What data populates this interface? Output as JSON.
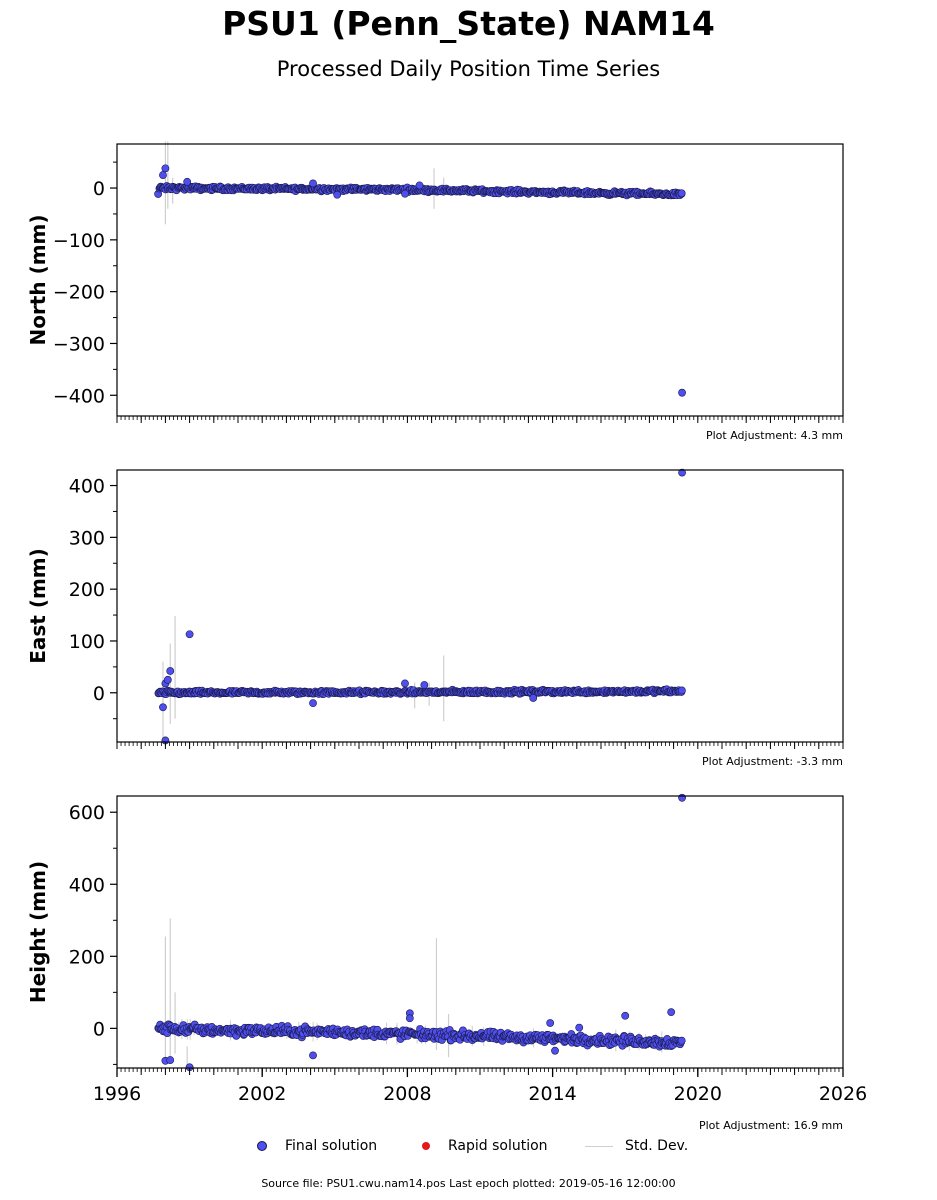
{
  "title": "PSU1 (Penn_State) NAM14",
  "subtitle": "Processed Daily Position Time Series",
  "colors": {
    "final": "#4f4fef",
    "final_edge": "#1a1a4a",
    "rapid": "#e31a1c",
    "stddev": "#cfcfcf"
  },
  "legend": {
    "final": "Final solution",
    "rapid": "Rapid solution",
    "stddev": "Std. Dev."
  },
  "footer": "Source file: PSU1.cwu.nam14.pos  Last epoch plotted: 2019-05-16 12:00:00",
  "chart_data": [
    {
      "type": "scatter",
      "ylabel": "North (mm)",
      "adjustment": "Plot Adjustment: 4.3 mm",
      "xlim": [
        1996,
        2026
      ],
      "ylim": [
        -440,
        85
      ],
      "yticks": [
        0,
        -100,
        -200,
        -300,
        -400
      ],
      "ytick_labels": [
        "0",
        "−100",
        "−200",
        "−300",
        "−400"
      ],
      "minor_step": 50,
      "show_xtick_labels": false,
      "series": [
        {
          "trend": [
            [
              1997.7,
              0
            ],
            [
              2008,
              -3
            ],
            [
              2013.5,
              -8
            ],
            [
              2019.35,
              -12
            ]
          ],
          "noise": 2.5,
          "outliers": [
            [
              1997.9,
              25
            ],
            [
              1998.0,
              38
            ],
            [
              1998.9,
              12
            ],
            [
              2004.1,
              9
            ],
            [
              2005.1,
              -13
            ],
            [
              2007.9,
              -11
            ],
            [
              2008.5,
              5
            ],
            [
              2019.35,
              -395
            ]
          ],
          "errorbars": [
            [
              1998.0,
              -70,
              90
            ],
            [
              1998.1,
              -40,
              90
            ],
            [
              1998.3,
              -30,
              20
            ],
            [
              2009.1,
              -40,
              38
            ],
            [
              2009.5,
              -15,
              20
            ]
          ]
        }
      ]
    },
    {
      "type": "scatter",
      "ylabel": "East (mm)",
      "adjustment": "Plot Adjustment: -3.3 mm",
      "xlim": [
        1996,
        2026
      ],
      "ylim": [
        -95,
        430
      ],
      "yticks": [
        0,
        100,
        200,
        300,
        400
      ],
      "ytick_labels": [
        "0",
        "100",
        "200",
        "300",
        "400"
      ],
      "minor_step": 50,
      "show_xtick_labels": false,
      "series": [
        {
          "trend": [
            [
              1997.7,
              0
            ],
            [
              2008,
              1
            ],
            [
              2013.5,
              2
            ],
            [
              2019.35,
              3
            ]
          ],
          "noise": 2.5,
          "outliers": [
            [
              1997.9,
              -28
            ],
            [
              1998.0,
              18
            ],
            [
              1998.1,
              25
            ],
            [
              1998.2,
              42
            ],
            [
              1999.0,
              113
            ],
            [
              2004.1,
              -20
            ],
            [
              2007.9,
              18
            ],
            [
              2008.7,
              15
            ],
            [
              2013.2,
              -10
            ],
            [
              1998.0,
              -92
            ],
            [
              2019.35,
              425
            ]
          ],
          "errorbars": [
            [
              1997.9,
              -90,
              60
            ],
            [
              1998.2,
              -60,
              95
            ],
            [
              1998.4,
              -50,
              148
            ],
            [
              2009.5,
              -55,
              72
            ],
            [
              2008.3,
              -30,
              20
            ],
            [
              2008.9,
              -25,
              20
            ]
          ]
        }
      ]
    },
    {
      "type": "scatter",
      "ylabel": "Height (mm)",
      "adjustment": "Plot Adjustment: 16.9 mm",
      "xlim": [
        1996,
        2026
      ],
      "ylim": [
        -110,
        645
      ],
      "yticks": [
        0,
        200,
        400,
        600
      ],
      "ytick_labels": [
        "0",
        "200",
        "400",
        "600"
      ],
      "minor_step": 100,
      "show_xtick_labels": true,
      "xticks": [
        1996,
        2002,
        2008,
        2014,
        2020,
        2026
      ],
      "xtick_labels": [
        "1996",
        "2002",
        "2008",
        "2014",
        "2020",
        "2026"
      ],
      "series": [
        {
          "trend": [
            [
              1997.7,
              0
            ],
            [
              2000,
              -5
            ],
            [
              2005,
              -10
            ],
            [
              2010,
              -20
            ],
            [
              2015,
              -30
            ],
            [
              2019.35,
              -40
            ]
          ],
          "noise": 9,
          "outliers": [
            [
              1998.0,
              -90
            ],
            [
              1998.2,
              -88
            ],
            [
              1999.0,
              -108
            ],
            [
              2004.1,
              -75
            ],
            [
              2008.1,
              42
            ],
            [
              2008.1,
              28
            ],
            [
              2013.9,
              15
            ],
            [
              2014.1,
              -62
            ],
            [
              2015.1,
              2
            ],
            [
              2017.0,
              35
            ],
            [
              2018.9,
              45
            ],
            [
              2019.35,
              640
            ]
          ],
          "errorbars": [
            [
              1998.0,
              -95,
              255
            ],
            [
              1998.2,
              -90,
              305
            ],
            [
              1998.4,
              -70,
              100
            ],
            [
              1998.9,
              -110,
              -50
            ],
            [
              2009.2,
              -60,
              250
            ],
            [
              2009.7,
              -80,
              40
            ]
          ]
        }
      ]
    }
  ]
}
